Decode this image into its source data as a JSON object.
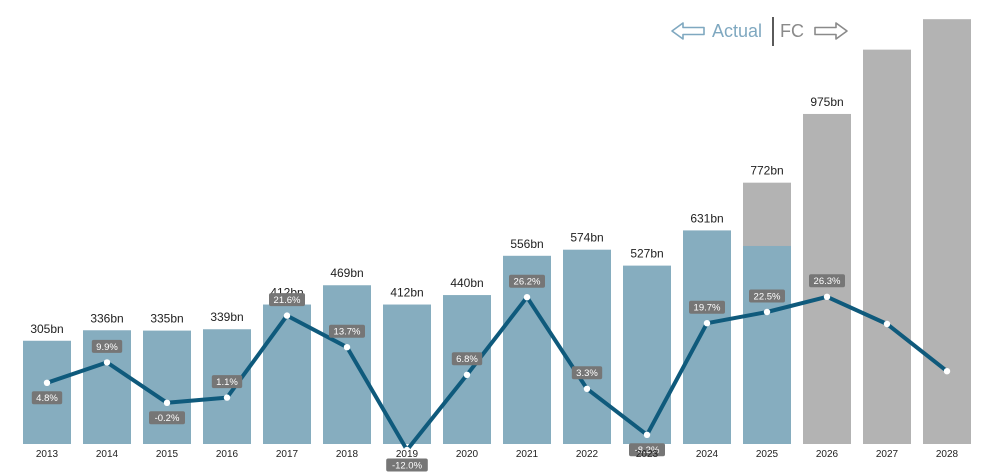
{
  "chart_data": {
    "type": "bar",
    "categories": [
      "2013",
      "2014",
      "2015",
      "2016",
      "2017",
      "2018",
      "2019",
      "2020",
      "2021",
      "2022",
      "2023",
      "2024",
      "2025",
      "2026",
      "2027",
      "2028"
    ],
    "series": [
      {
        "values": [
          305,
          336,
          335,
          339,
          412,
          469,
          412,
          440,
          556,
          574,
          527,
          631,
          585,
          null,
          null,
          null
        ]
      },
      {
        "values": [
          null,
          null,
          null,
          null,
          null,
          null,
          null,
          null,
          null,
          null,
          null,
          null,
          772,
          975,
          1165,
          1255
        ]
      },
      {
        "values": [
          4.8,
          9.9,
          -0.2,
          1.1,
          21.6,
          13.7,
          -12.0,
          6.8,
          26.2,
          3.3,
          -8.2,
          19.7,
          22.5,
          26.3,
          19.5,
          7.7
        ]
      }
    ],
    "value_labels": [
      "305bn",
      "336bn",
      "335bn",
      "339bn",
      "412bn",
      "469bn",
      "412bn",
      "440bn",
      "556bn",
      "574bn",
      "527bn",
      "631bn",
      "772bn",
      "975bn",
      "",
      ""
    ],
    "growth_labels": [
      "4.8%",
      "9.9%",
      "-0.2%",
      "1.1%",
      "21.6%",
      "13.7%",
      "-12.0%",
      "6.8%",
      "26.2%",
      "3.3%",
      "-8.2%",
      "19.7%",
      "22.5%",
      "26.3%",
      "",
      ""
    ],
    "title": "",
    "xlabel": "",
    "ylabel": "",
    "ylim": [
      0,
      1300
    ],
    "grid": false,
    "legend": {
      "actual": "Actual",
      "forecast": "FC"
    },
    "colors": {
      "actual_bar": "#86adbf",
      "forecast_bar": "#b3b3b3",
      "line": "#0f5a7c",
      "label_bg": "#767676"
    }
  }
}
